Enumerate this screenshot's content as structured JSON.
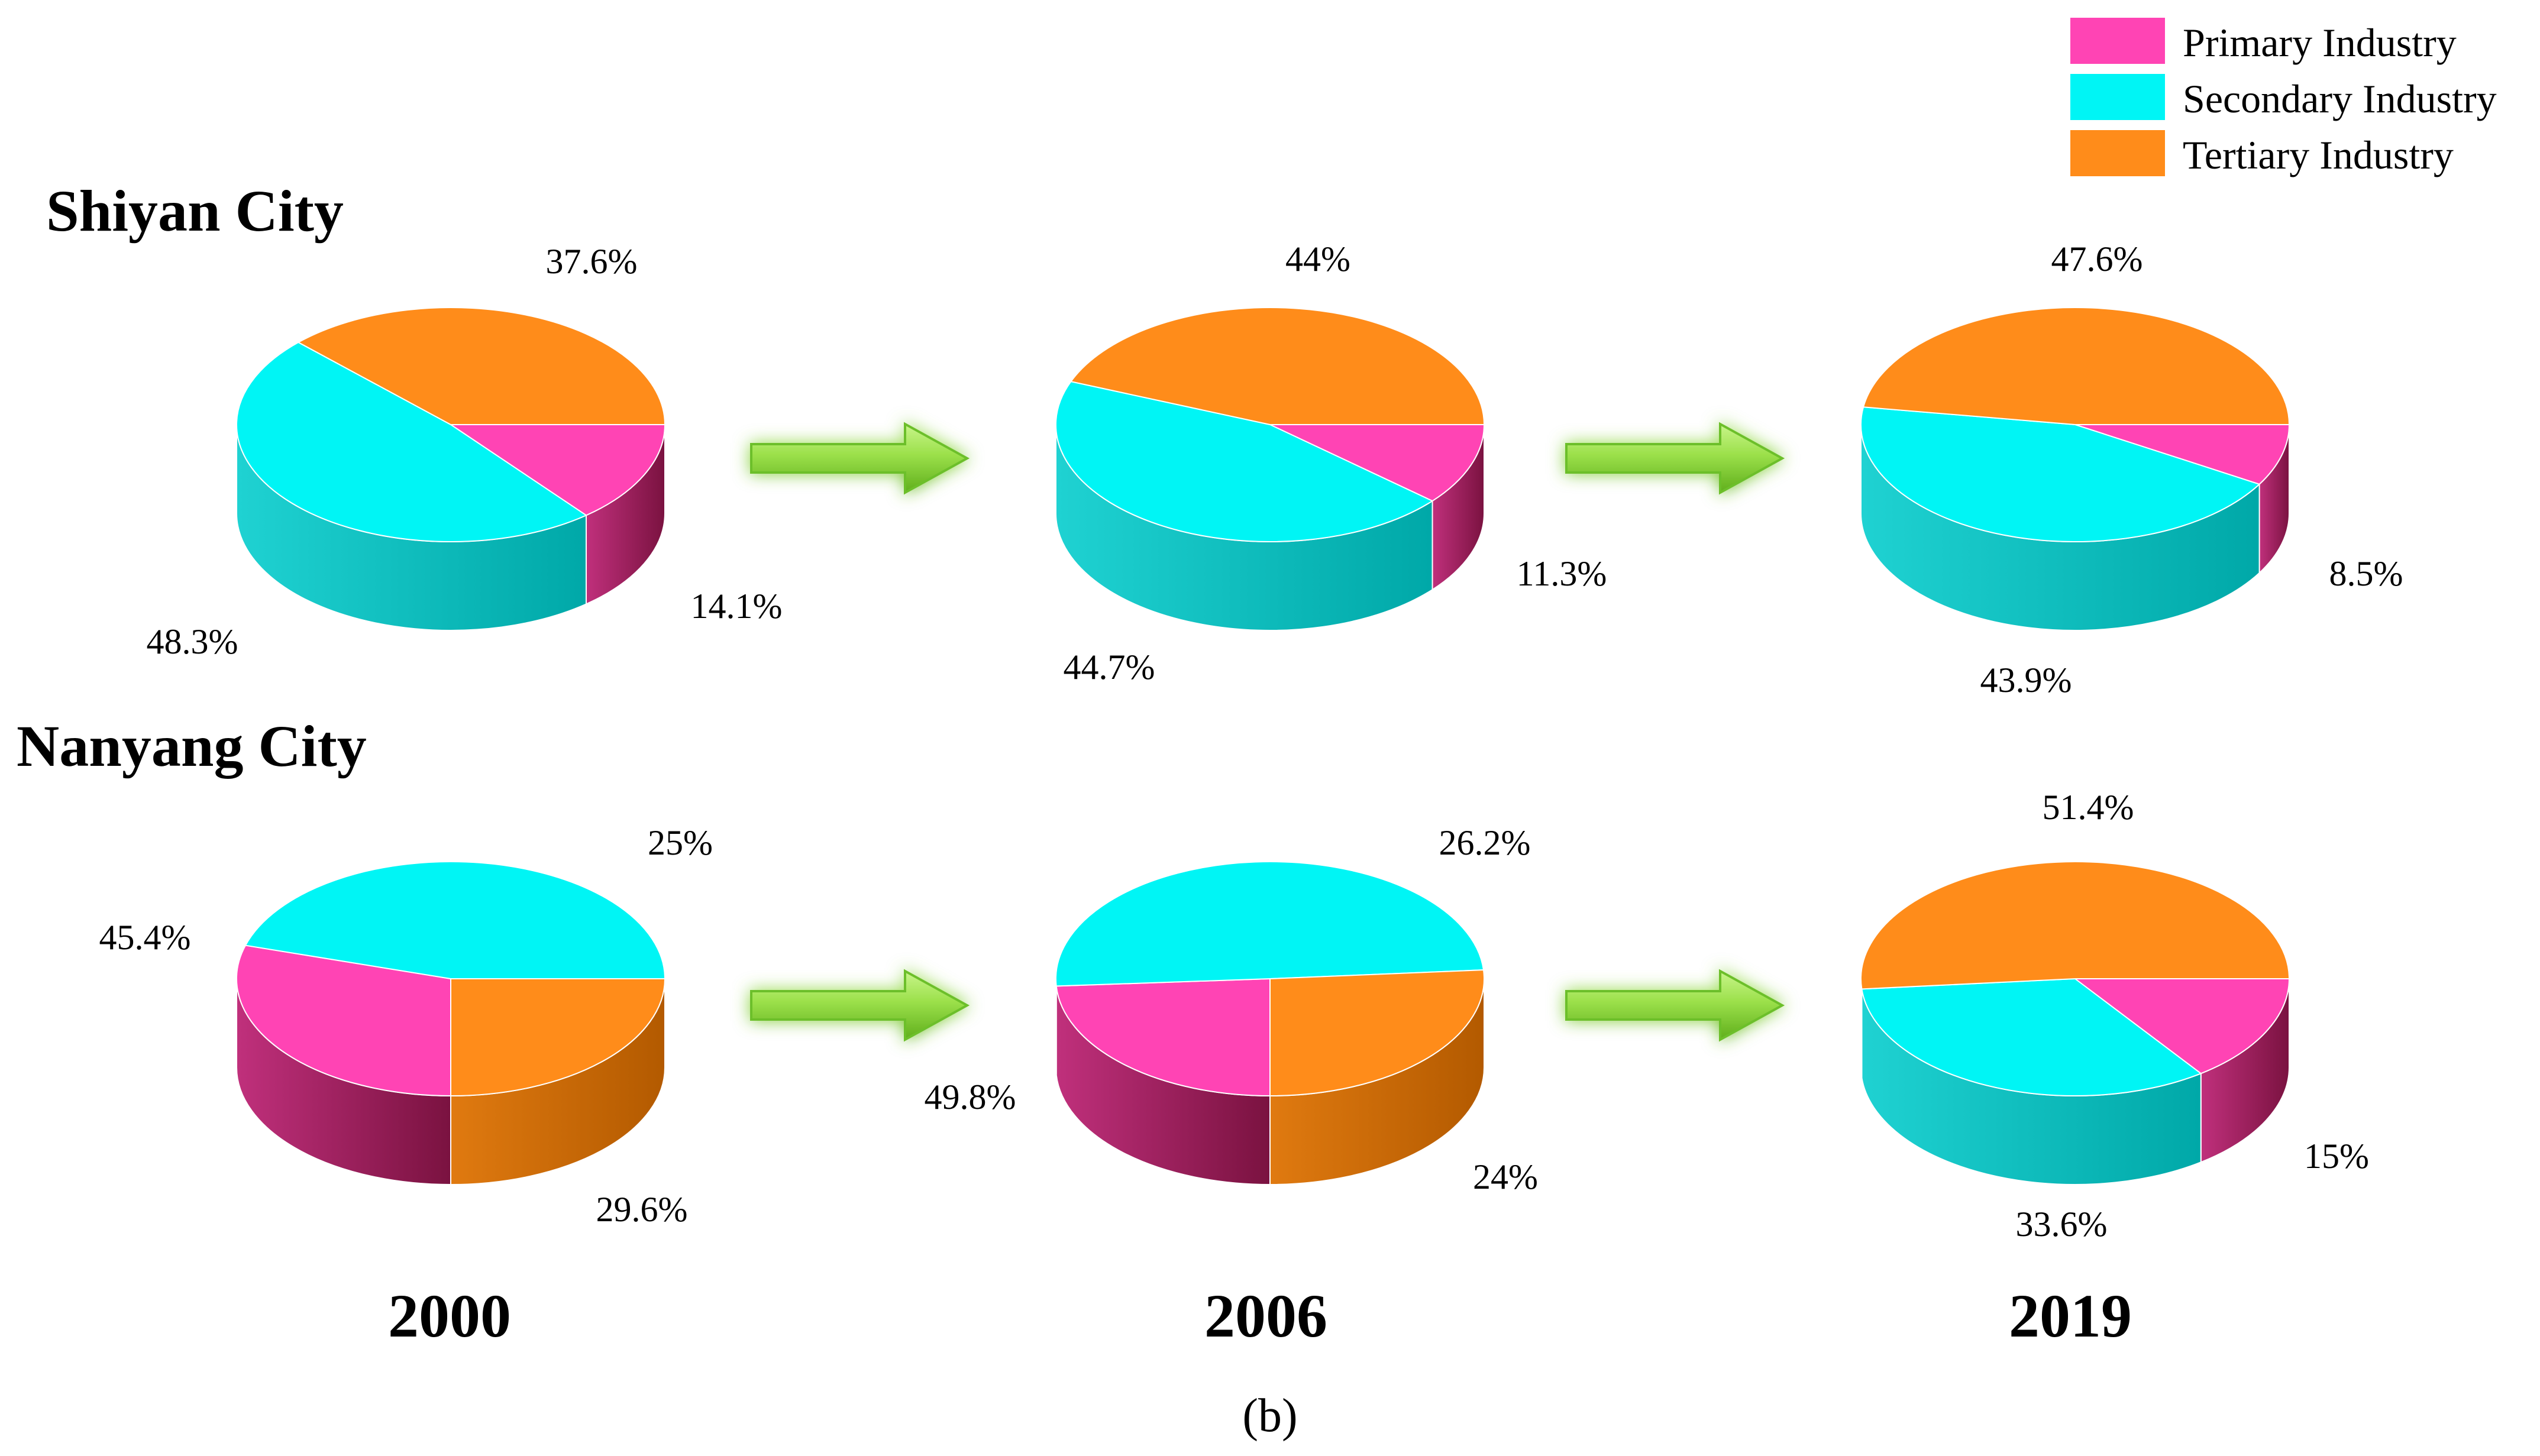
{
  "legend": [
    {
      "label": "Primary Industry",
      "color": "#ff44b4"
    },
    {
      "label": "Secondary Industry",
      "color": "#00f5f5"
    },
    {
      "label": "Tertiary Industry",
      "color": "#ff8c1a"
    }
  ],
  "years": [
    "2000",
    "2006",
    "2019"
  ],
  "panel_label": "(b)",
  "chart_data": [
    {
      "type": "pie",
      "city": "Shiyan City",
      "year": "2000",
      "categories": [
        "Primary Industry",
        "Secondary Industry",
        "Tertiary Industry"
      ],
      "values": [
        14.1,
        48.3,
        37.6
      ],
      "labels": [
        "14.1%",
        "48.3%",
        "37.6%"
      ]
    },
    {
      "type": "pie",
      "city": "Shiyan City",
      "year": "2006",
      "categories": [
        "Primary Industry",
        "Secondary Industry",
        "Tertiary Industry"
      ],
      "values": [
        11.3,
        44.7,
        44
      ],
      "labels": [
        "11.3%",
        "44.7%",
        "44%"
      ]
    },
    {
      "type": "pie",
      "city": "Shiyan City",
      "year": "2019",
      "categories": [
        "Primary Industry",
        "Secondary Industry",
        "Tertiary Industry"
      ],
      "values": [
        8.5,
        43.9,
        47.6
      ],
      "labels": [
        "8.5%",
        "43.9%",
        "47.6%"
      ]
    },
    {
      "type": "pie",
      "city": "Nanyang City",
      "year": "2000",
      "categories": [
        "Primary Industry",
        "Secondary Industry",
        "Tertiary Industry"
      ],
      "values": [
        29.6,
        45.4,
        25
      ],
      "labels": [
        "29.6%",
        "45.4%",
        "25%"
      ]
    },
    {
      "type": "pie",
      "city": "Nanyang City",
      "year": "2006",
      "categories": [
        "Primary Industry",
        "Secondary Industry",
        "Tertiary Industry"
      ],
      "values": [
        24,
        49.8,
        26.2
      ],
      "labels": [
        "24%",
        "49.8%",
        "26.2%"
      ]
    },
    {
      "type": "pie",
      "city": "Nanyang City",
      "year": "2019",
      "categories": [
        "Primary Industry",
        "Secondary Industry",
        "Tertiary Industry"
      ],
      "values": [
        15,
        33.6,
        51.4
      ],
      "labels": [
        "15%",
        "33.6%",
        "51.4%"
      ]
    }
  ]
}
